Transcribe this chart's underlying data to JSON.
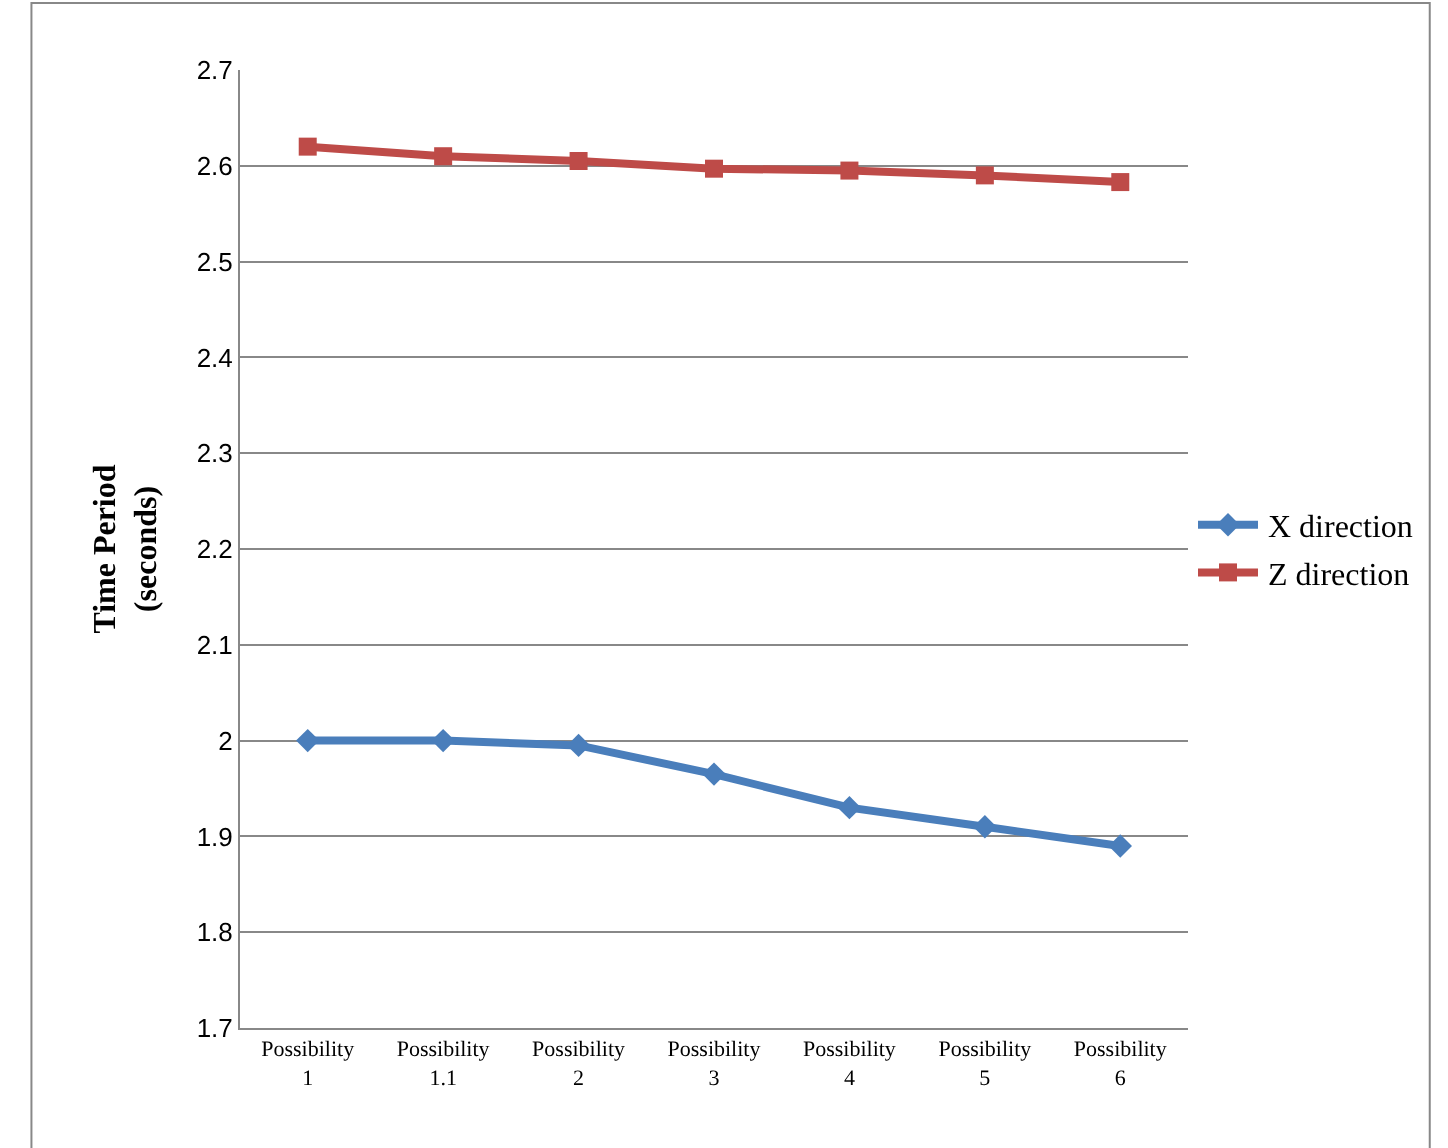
{
  "chart_data": {
    "type": "line",
    "ylabel": "Time Period\n(seconds)",
    "categories": [
      "Possibility\n1",
      "Possibility\n1.1",
      "Possibility\n2",
      "Possibility\n3",
      "Possibility\n4",
      "Possibility\n5",
      "Possibility\n6"
    ],
    "series": [
      {
        "name": "X direction",
        "color": "#4a7ebb",
        "marker": "diamond",
        "values": [
          2.0,
          2.0,
          1.995,
          1.965,
          1.93,
          1.91,
          1.89
        ]
      },
      {
        "name": "Z direction",
        "color": "#be4b48",
        "marker": "square",
        "values": [
          2.62,
          2.61,
          2.605,
          2.597,
          2.595,
          2.59,
          2.583
        ]
      }
    ],
    "ylim": [
      1.7,
      2.7
    ],
    "yticks": [
      1.7,
      1.8,
      1.9,
      {
        "value": 2.0,
        "label": "2"
      },
      2.1,
      2.2,
      2.3,
      2.4,
      2.5,
      2.6,
      2.7
    ],
    "grid": "y",
    "legend": "right"
  }
}
